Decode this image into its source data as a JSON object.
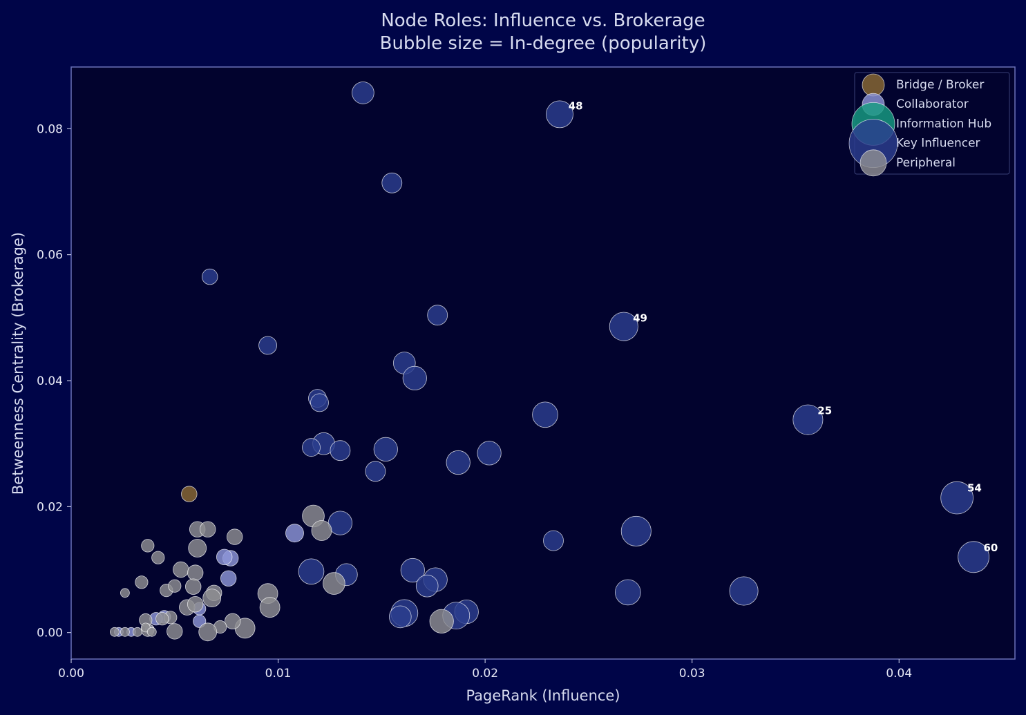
{
  "chart_data": {
    "type": "scatter",
    "title": "Node Roles: Influence vs. Brokerage",
    "subtitle": "Bubble size = In-degree (popularity)",
    "xlabel": "PageRank (Influence)",
    "ylabel": "Betweenness Centrality (Brokerage)",
    "xlim": [
      0.0,
      0.0456
    ],
    "ylim": [
      -0.0042,
      0.0898
    ],
    "xticks": [
      "0.00",
      "0.01",
      "0.02",
      "0.03",
      "0.04"
    ],
    "xtick_values": [
      0.0,
      0.01,
      0.02,
      0.03,
      0.04
    ],
    "yticks": [
      "0.00",
      "0.02",
      "0.04",
      "0.06",
      "0.08"
    ],
    "ytick_values": [
      0.0,
      0.02,
      0.04,
      0.06,
      0.08
    ],
    "legend_position": "top-right",
    "grid": false,
    "colors": {
      "background": "#000548",
      "plot_background": "#02032e",
      "axis": "#6a72b8",
      "Bridge / Broker": "#8b6a33",
      "Collaborator": "#8e96d8",
      "Information Hub": "#179e82",
      "Key Influencer": "#2c3e8f",
      "Peripheral": "#8f8f93"
    },
    "series": [
      {
        "name": "Bridge / Broker",
        "points": [
          {
            "x": 0.0057,
            "y": 0.022,
            "size": 3
          }
        ]
      },
      {
        "name": "Collaborator",
        "points": [
          {
            "x": 0.0108,
            "y": 0.0158,
            "size": 4
          },
          {
            "x": 0.0077,
            "y": 0.0118,
            "size": 3
          },
          {
            "x": 0.0074,
            "y": 0.012,
            "size": 3
          },
          {
            "x": 0.0076,
            "y": 0.0086,
            "size": 3
          },
          {
            "x": 0.0062,
            "y": 0.0038,
            "size": 2
          },
          {
            "x": 0.0045,
            "y": 0.0025,
            "size": 2
          },
          {
            "x": 0.0062,
            "y": 0.0018,
            "size": 2
          },
          {
            "x": 0.0041,
            "y": 0.0022,
            "size": 2
          },
          {
            "x": 0.0023,
            "y": 0.0001,
            "size": 1
          },
          {
            "x": 0.0029,
            "y": 0.0001,
            "size": 1
          },
          {
            "x": 0.0038,
            "y": 0.0005,
            "size": 1
          }
        ]
      },
      {
        "name": "Information Hub",
        "points": []
      },
      {
        "name": "Key Influencer",
        "points": [
          {
            "x": 0.0141,
            "y": 0.0857,
            "size": 6
          },
          {
            "x": 0.0236,
            "y": 0.0823,
            "size": 9,
            "label": "48"
          },
          {
            "x": 0.0155,
            "y": 0.0714,
            "size": 5
          },
          {
            "x": 0.0067,
            "y": 0.0565,
            "size": 3
          },
          {
            "x": 0.0177,
            "y": 0.0504,
            "size": 5
          },
          {
            "x": 0.0267,
            "y": 0.0486,
            "size": 10,
            "label": "49"
          },
          {
            "x": 0.0095,
            "y": 0.0456,
            "size": 4
          },
          {
            "x": 0.0161,
            "y": 0.0428,
            "size": 6
          },
          {
            "x": 0.0166,
            "y": 0.0404,
            "size": 7
          },
          {
            "x": 0.0119,
            "y": 0.0372,
            "size": 4
          },
          {
            "x": 0.012,
            "y": 0.0365,
            "size": 4
          },
          {
            "x": 0.0229,
            "y": 0.0346,
            "size": 8
          },
          {
            "x": 0.0356,
            "y": 0.0338,
            "size": 11,
            "label": "25"
          },
          {
            "x": 0.0122,
            "y": 0.03,
            "size": 6
          },
          {
            "x": 0.0116,
            "y": 0.0294,
            "size": 4
          },
          {
            "x": 0.013,
            "y": 0.0289,
            "size": 5
          },
          {
            "x": 0.0152,
            "y": 0.0291,
            "size": 7
          },
          {
            "x": 0.0202,
            "y": 0.0285,
            "size": 7
          },
          {
            "x": 0.0187,
            "y": 0.027,
            "size": 7
          },
          {
            "x": 0.0147,
            "y": 0.0256,
            "size": 5
          },
          {
            "x": 0.0428,
            "y": 0.0214,
            "size": 13,
            "label": "54"
          },
          {
            "x": 0.013,
            "y": 0.0174,
            "size": 7
          },
          {
            "x": 0.0273,
            "y": 0.0161,
            "size": 11
          },
          {
            "x": 0.0233,
            "y": 0.0146,
            "size": 5
          },
          {
            "x": 0.0436,
            "y": 0.012,
            "size": 12,
            "label": "60"
          },
          {
            "x": 0.0116,
            "y": 0.0097,
            "size": 8
          },
          {
            "x": 0.0165,
            "y": 0.0099,
            "size": 7
          },
          {
            "x": 0.0133,
            "y": 0.0092,
            "size": 6
          },
          {
            "x": 0.0176,
            "y": 0.0084,
            "size": 7
          },
          {
            "x": 0.0172,
            "y": 0.0074,
            "size": 6
          },
          {
            "x": 0.0269,
            "y": 0.0064,
            "size": 8
          },
          {
            "x": 0.0325,
            "y": 0.0066,
            "size": 10
          },
          {
            "x": 0.0191,
            "y": 0.0033,
            "size": 7
          },
          {
            "x": 0.0186,
            "y": 0.0027,
            "size": 9
          },
          {
            "x": 0.0161,
            "y": 0.0031,
            "size": 9
          },
          {
            "x": 0.0159,
            "y": 0.0025,
            "size": 6
          }
        ]
      },
      {
        "name": "Peripheral",
        "points": [
          {
            "x": 0.0117,
            "y": 0.0185,
            "size": 6
          },
          {
            "x": 0.0121,
            "y": 0.0162,
            "size": 5
          },
          {
            "x": 0.0127,
            "y": 0.0078,
            "size": 6
          },
          {
            "x": 0.0095,
            "y": 0.0062,
            "size": 5
          },
          {
            "x": 0.0096,
            "y": 0.004,
            "size": 5
          },
          {
            "x": 0.0084,
            "y": 0.0007,
            "size": 5
          },
          {
            "x": 0.0179,
            "y": 0.0018,
            "size": 7
          },
          {
            "x": 0.0061,
            "y": 0.0164,
            "size": 3
          },
          {
            "x": 0.0066,
            "y": 0.0164,
            "size": 3
          },
          {
            "x": 0.0079,
            "y": 0.0152,
            "size": 3
          },
          {
            "x": 0.0037,
            "y": 0.0138,
            "size": 2
          },
          {
            "x": 0.0061,
            "y": 0.0134,
            "size": 4
          },
          {
            "x": 0.0042,
            "y": 0.0119,
            "size": 2
          },
          {
            "x": 0.0053,
            "y": 0.01,
            "size": 3
          },
          {
            "x": 0.006,
            "y": 0.0095,
            "size": 3
          },
          {
            "x": 0.0034,
            "y": 0.008,
            "size": 2
          },
          {
            "x": 0.0046,
            "y": 0.0067,
            "size": 2
          },
          {
            "x": 0.005,
            "y": 0.0074,
            "size": 2
          },
          {
            "x": 0.0059,
            "y": 0.0073,
            "size": 3
          },
          {
            "x": 0.0069,
            "y": 0.0063,
            "size": 3
          },
          {
            "x": 0.0068,
            "y": 0.0055,
            "size": 4
          },
          {
            "x": 0.0026,
            "y": 0.0063,
            "size": 1
          },
          {
            "x": 0.0056,
            "y": 0.004,
            "size": 3
          },
          {
            "x": 0.006,
            "y": 0.0045,
            "size": 3
          },
          {
            "x": 0.0036,
            "y": 0.002,
            "size": 2
          },
          {
            "x": 0.0048,
            "y": 0.0024,
            "size": 2
          },
          {
            "x": 0.0044,
            "y": 0.0022,
            "size": 2
          },
          {
            "x": 0.0078,
            "y": 0.0018,
            "size": 3
          },
          {
            "x": 0.0072,
            "y": 0.0009,
            "size": 2
          },
          {
            "x": 0.005,
            "y": 0.0002,
            "size": 3
          },
          {
            "x": 0.0066,
            "y": 0.0001,
            "size": 4
          },
          {
            "x": 0.0037,
            "y": 0.0004,
            "size": 2
          },
          {
            "x": 0.0036,
            "y": 0.0008,
            "size": 1
          },
          {
            "x": 0.0021,
            "y": 0.0001,
            "size": 1
          },
          {
            "x": 0.0026,
            "y": 0.0001,
            "size": 1
          },
          {
            "x": 0.0032,
            "y": 0.0001,
            "size": 1
          },
          {
            "x": 0.0039,
            "y": 0.0001,
            "size": 1
          }
        ]
      }
    ]
  }
}
